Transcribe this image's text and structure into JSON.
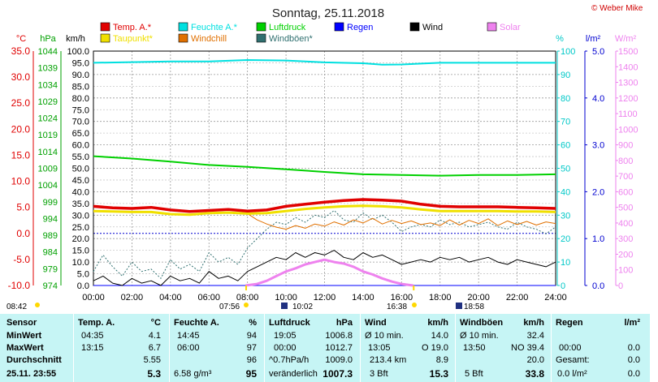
{
  "copyright": "© Weber Mike",
  "chart_data": {
    "type": "line",
    "title": "Sonntag, 25.11.2018",
    "x_ticks": [
      "00:00",
      "02:00",
      "04:00",
      "06:00",
      "08:00",
      "10:00",
      "12:00",
      "14:00",
      "16:00",
      "18:00",
      "20:00",
      "22:00",
      "24:00"
    ],
    "x_range_hours": [
      0,
      24
    ],
    "axes": {
      "temp": {
        "unit": "°C",
        "range": [
          -10,
          35
        ],
        "ticks": [
          "-10.0",
          "-5.0",
          "0.0",
          "5.0",
          "10.0",
          "15.0",
          "20.0",
          "25.0",
          "30.0",
          "35.0"
        ],
        "color": "#e00000"
      },
      "hpa": {
        "unit": "hPa",
        "range": [
          974,
          1044
        ],
        "ticks": [
          "974",
          "979",
          "984",
          "989",
          "994",
          "999",
          "1004",
          "1009",
          "1014",
          "1019",
          "1024",
          "1029",
          "1034",
          "1039",
          "1044"
        ],
        "color": "#00a000"
      },
      "kmh": {
        "unit": "km/h",
        "range": [
          0,
          100
        ],
        "ticks": [
          "0.0",
          "5.0",
          "10.0",
          "15.0",
          "20.0",
          "25.0",
          "30.0",
          "35.0",
          "40.0",
          "45.0",
          "50.0",
          "55.0",
          "60.0",
          "65.0",
          "70.0",
          "75.0",
          "80.0",
          "85.0",
          "90.0",
          "95.0",
          "100.0"
        ],
        "color": "#000000"
      },
      "humidity": {
        "unit": "%",
        "range": [
          0,
          100
        ],
        "ticks": [
          "0",
          "10",
          "20",
          "30",
          "40",
          "50",
          "60",
          "70",
          "80",
          "90",
          "100"
        ],
        "color": "#00c8c8"
      },
      "rain": {
        "unit": "l/m²",
        "range": [
          0,
          5
        ],
        "ticks": [
          "0.0",
          "1.0",
          "2.0",
          "3.0",
          "4.0",
          "5.0"
        ],
        "color": "#0000d0"
      },
      "solar": {
        "unit": "W/m²",
        "range": [
          0,
          1500
        ],
        "ticks": [
          "0",
          "100",
          "200",
          "300",
          "400",
          "500",
          "600",
          "700",
          "800",
          "900",
          "1000",
          "1100",
          "1200",
          "1300",
          "1400",
          "1500"
        ],
        "color": "#ee82ee"
      }
    },
    "legend": [
      {
        "name": "Temp. A.*",
        "color": "#e00000"
      },
      {
        "name": "Feuchte A.*",
        "color": "#00e0e0"
      },
      {
        "name": "Luftdruck",
        "color": "#00d000"
      },
      {
        "name": "Regen",
        "color": "#0000ff"
      },
      {
        "name": "Wind",
        "color": "#000000"
      },
      {
        "name": "Solar",
        "color": "#ee82ee"
      },
      {
        "name": "Taupunkt*",
        "color": "#f0e000"
      },
      {
        "name": "Windchill",
        "color": "#e07000"
      },
      {
        "name": "Windböen*",
        "color": "#307070"
      }
    ],
    "series": [
      {
        "name": "Temp. A.*",
        "axis": "temp",
        "x": [
          0,
          1,
          2,
          3,
          4,
          5,
          6,
          7,
          8,
          9,
          10,
          11,
          12,
          13,
          14,
          15,
          16,
          17,
          18,
          19,
          20,
          21,
          22,
          23,
          24
        ],
        "y": [
          5.2,
          4.9,
          4.8,
          5.0,
          4.5,
          4.2,
          4.4,
          4.6,
          4.3,
          4.5,
          5.2,
          5.6,
          6.0,
          6.3,
          6.5,
          6.4,
          6.2,
          5.6,
          5.2,
          5.1,
          5.1,
          5.1,
          5.0,
          4.9,
          4.8
        ]
      },
      {
        "name": "Taupunkt*",
        "axis": "temp",
        "x": [
          0,
          1,
          2,
          3,
          4,
          5,
          6,
          7,
          8,
          9,
          10,
          11,
          12,
          13,
          14,
          15,
          16,
          17,
          18,
          19,
          20,
          21,
          22,
          23,
          24
        ],
        "y": [
          4.3,
          4.2,
          4.1,
          4.1,
          3.7,
          3.6,
          3.9,
          4.0,
          3.8,
          3.9,
          4.3,
          4.7,
          5.0,
          5.2,
          5.3,
          5.2,
          5.0,
          4.6,
          4.3,
          4.3,
          4.3,
          4.3,
          4.2,
          4.2,
          4.1
        ]
      },
      {
        "name": "Feuchte A.*",
        "axis": "humidity",
        "x": [
          0,
          2,
          4,
          6,
          8,
          10,
          12,
          14,
          15,
          16,
          18,
          20,
          22,
          24
        ],
        "y": [
          95,
          95.3,
          95.6,
          95.6,
          96.2,
          96,
          95.2,
          94.8,
          94.2,
          94.3,
          95,
          95,
          95,
          95
        ]
      },
      {
        "name": "Luftdruck",
        "axis": "hpa",
        "x": [
          0,
          2,
          4,
          6,
          8,
          10,
          12,
          14,
          16,
          18,
          20,
          22,
          24
        ],
        "y": [
          1012.6,
          1011.9,
          1011.0,
          1010.0,
          1009.4,
          1008.7,
          1007.9,
          1007.2,
          1007.0,
          1006.8,
          1007.0,
          1007.0,
          1007.2
        ]
      },
      {
        "name": "Wind",
        "axis": "kmh",
        "x": [
          0,
          0.5,
          1,
          1.5,
          2,
          2.5,
          3,
          3.5,
          4,
          4.5,
          5,
          5.5,
          6,
          6.5,
          7,
          7.5,
          8,
          8.5,
          9,
          9.5,
          10,
          10.5,
          11,
          11.5,
          12,
          12.5,
          13,
          13.5,
          14,
          14.5,
          15,
          15.5,
          16,
          16.5,
          17,
          17.5,
          18,
          18.5,
          19,
          19.5,
          20,
          20.5,
          21,
          21.5,
          22,
          22.5,
          23,
          23.5,
          24
        ],
        "y": [
          2,
          4,
          1,
          0,
          3,
          1,
          2,
          0,
          4,
          2,
          3,
          1,
          6,
          3,
          4,
          2,
          6,
          8,
          10,
          12,
          11,
          14,
          12,
          14,
          13,
          15,
          12,
          11,
          14,
          12,
          13,
          11,
          9,
          10,
          11,
          10,
          12,
          11,
          12,
          10,
          11,
          12,
          10,
          9,
          11,
          10,
          9,
          8,
          10
        ]
      },
      {
        "name": "Windböen*",
        "axis": "kmh",
        "x": [
          0,
          0.5,
          1,
          1.5,
          2,
          2.5,
          3,
          3.5,
          4,
          4.5,
          5,
          5.5,
          6,
          6.5,
          7,
          7.5,
          8,
          8.5,
          9,
          9.5,
          10,
          10.5,
          11,
          11.5,
          12,
          12.5,
          13,
          13.5,
          14,
          14.5,
          15,
          15.5,
          16,
          16.5,
          17,
          17.5,
          18,
          18.5,
          19,
          19.5,
          20,
          20.5,
          21,
          21.5,
          22,
          22.5,
          23,
          23.5,
          24
        ],
        "y": [
          6,
          13,
          8,
          4,
          10,
          6,
          7,
          3,
          11,
          7,
          9,
          6,
          14,
          10,
          12,
          9,
          16,
          20,
          24,
          27,
          26,
          29,
          27,
          30,
          29,
          32,
          28,
          27,
          31,
          28,
          30,
          27,
          23,
          25,
          26,
          25,
          28,
          26,
          27,
          25,
          26,
          27,
          25,
          24,
          27,
          25,
          24,
          22,
          25
        ]
      },
      {
        "name": "Windchill",
        "axis": "temp",
        "x": [
          8,
          8.5,
          9,
          9.5,
          10,
          10.5,
          11,
          11.5,
          12,
          12.5,
          13,
          13.5,
          14,
          14.5,
          15,
          15.5,
          16,
          16.5,
          17,
          17.5,
          18,
          18.5,
          19,
          19.5,
          20,
          20.5,
          21,
          21.5,
          22,
          22.5,
          23,
          23.5,
          24
        ],
        "y": [
          3.8,
          2.6,
          1.8,
          1.2,
          0.8,
          1.5,
          1.0,
          1.8,
          1.4,
          2.2,
          1.6,
          2.6,
          2.0,
          2.9,
          1.8,
          2.5,
          1.9,
          2.4,
          1.7,
          2.0,
          1.5,
          2.6,
          1.6,
          2.5,
          1.9,
          2.8,
          1.5,
          2.4,
          1.7,
          2.3,
          1.6,
          2.2,
          1.9
        ]
      },
      {
        "name": "Solar",
        "axis": "solar",
        "x": [
          7.9,
          8.5,
          9,
          9.5,
          10,
          10.5,
          11,
          11.5,
          12,
          12.5,
          13,
          13.5,
          14,
          14.5,
          15,
          15.5,
          16,
          16.6
        ],
        "y": [
          0,
          10,
          30,
          60,
          90,
          110,
          135,
          150,
          165,
          150,
          140,
          120,
          90,
          70,
          45,
          25,
          10,
          0
        ]
      },
      {
        "name": "Regen",
        "axis": "rain",
        "x": [
          0,
          24
        ],
        "y": [
          0,
          0
        ]
      }
    ],
    "sun_times": {
      "sunrise_left": "08:42",
      "sunrise": "07:56",
      "transit": "10:02",
      "sunset": "16:38",
      "moon": "18:58"
    }
  },
  "table": {
    "headers": {
      "sensor": "Sensor",
      "temp": "Temp. A.",
      "temp_unit": "°C",
      "feuchte": "Feuchte A.",
      "feuchte_unit": "%",
      "luftdruck": "Luftdruck",
      "luftdruck_unit": "hPa",
      "wind": "Wind",
      "wind_unit": "km/h",
      "windboen": "Windböen",
      "windboen_unit": "km/h",
      "regen": "Regen",
      "regen_unit": "l/m²"
    },
    "rows": {
      "min": {
        "label": "MinWert",
        "temp_time": "04:35",
        "temp_val": "4.1",
        "feuchte_time": "14:45",
        "feuchte_val": "94",
        "druck_time": "19:05",
        "druck_val": "1006.8",
        "wind_label": "Ø 10 min.",
        "wind_val": "14.0",
        "boen_label": "Ø 10 min.",
        "boen_val": "32.4",
        "regen_time": "",
        "regen_val": ""
      },
      "max": {
        "label": "MaxWert",
        "temp_time": "13:15",
        "temp_val": "6.7",
        "feuchte_time": "06:00",
        "feuchte_val": "97",
        "druck_time": "00:00",
        "druck_val": "1012.7",
        "wind_time": "13:05",
        "wind_dir": "O 19.0",
        "boen_time": "13:50",
        "boen_dir": "NO 39.4",
        "regen_time": "00:00",
        "regen_val": "0.0"
      },
      "avg": {
        "label": "Durchschnitt",
        "temp_val": "5.55",
        "feuchte_val": "96",
        "druck_label": "^0.7hPa/h",
        "druck_val": "1009.0",
        "wind_dist": "213.4 km",
        "wind_val": "8.9",
        "boen_val": "20.0",
        "regen_label": "Gesamt:",
        "regen_val": "0.0"
      },
      "cur": {
        "label": "25.11. 23:55",
        "temp_val": "5.3",
        "feuchte_abs": "6.58 g/m³",
        "feuchte_val": "95",
        "druck_label": "veränderlich",
        "druck_val": "1007.3",
        "wind_bft": "3 Bft",
        "wind_val": "15.3",
        "boen_bft": "5 Bft",
        "boen_val": "33.8",
        "regen_rate": "0.0 l/m²",
        "regen_val": "0.0"
      }
    }
  }
}
